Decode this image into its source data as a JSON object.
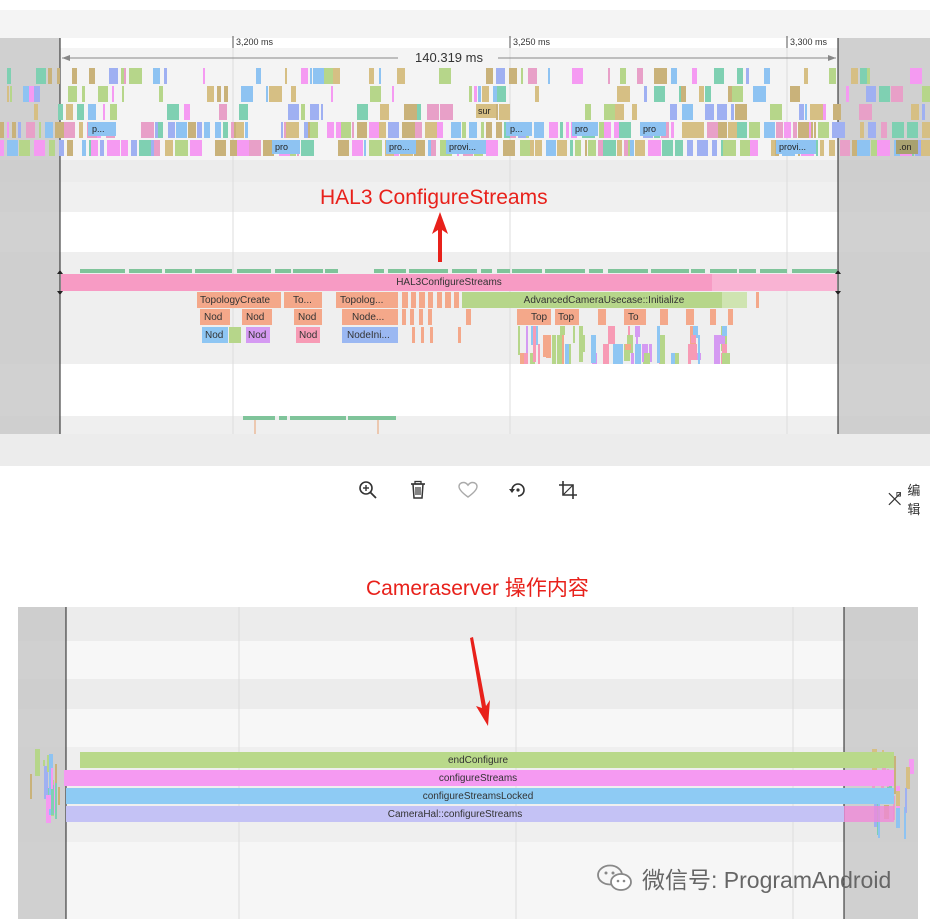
{
  "trace_top": {
    "ruler_ticks": [
      "3,200 ms",
      "3,250 ms",
      "3,300 ms"
    ],
    "selection_duration": "140.319 ms",
    "proc_labels_row1": [
      "p...",
      "sur",
      "p...",
      "pro",
      "pro"
    ],
    "proc_labels_row2": [
      "pro",
      "pro...",
      "provi...",
      "provi...",
      ".on"
    ],
    "main_slice": "HAL3ConfigureStreams",
    "children": [
      "TopologyCreate",
      "To...",
      "Topolog...",
      "AdvancedCameraUsecase::Initialize"
    ],
    "grandchildren": [
      "Nod",
      "Nod",
      "Nod",
      "Node...",
      "Top",
      "Top",
      "To"
    ],
    "great_grandchildren": [
      "Nod",
      "Nod",
      "Nod",
      "NodeIni..."
    ]
  },
  "annotation_top": "HAL3 ConfigureStreams",
  "annotation_bottom": "Cameraserver 操作内容",
  "toolbar": {
    "zoom_icon": "zoom-in-icon",
    "delete_icon": "trash-icon",
    "favorite_icon": "heart-icon",
    "rotate_icon": "rotate-icon",
    "crop_icon": "crop-icon",
    "edit_label": "编辑"
  },
  "trace_bottom": {
    "slices": [
      "endConfigure",
      "configureStreams",
      "configureStreamsLocked",
      "CameraHal::configureStreams"
    ]
  },
  "watermark": "微信号: ProgramAndroid",
  "colors": {
    "annotation_red": "#e8211b",
    "hal3_pink": "#f79bc4",
    "green_slice": "#b9d98a",
    "magenta_slice": "#f59af2",
    "blue_slice": "#8ecbf4",
    "lavender_slice": "#c4c2f5"
  }
}
